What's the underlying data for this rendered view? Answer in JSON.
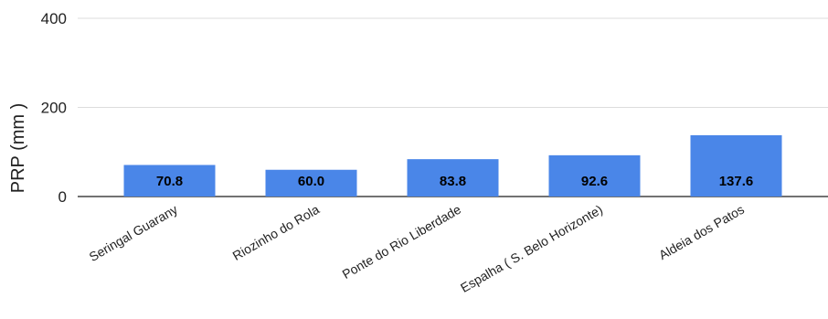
{
  "chart_data": {
    "type": "bar",
    "title": "",
    "xlabel": "",
    "ylabel": "PRP (mm )",
    "ylim": [
      0,
      400
    ],
    "yticks": [
      0,
      200,
      400
    ],
    "grid": true,
    "legend": "none",
    "categories": [
      "Seringal Guarany",
      "Riozinho do Rola",
      "Ponte do Rio Liberdade",
      "Espalha ( S. Belo Horizonte)",
      "Aldeia dos Patos"
    ],
    "values": [
      70.8,
      60.0,
      83.8,
      92.6,
      137.6
    ],
    "data_labels": [
      "70.8",
      "60.0",
      "83.8",
      "92.6",
      "137.6"
    ],
    "colors": {
      "bar": "#4a86e8",
      "grid": "#dcdcdc",
      "axis": "#444444",
      "text": "#222222",
      "label": "#000000"
    }
  }
}
